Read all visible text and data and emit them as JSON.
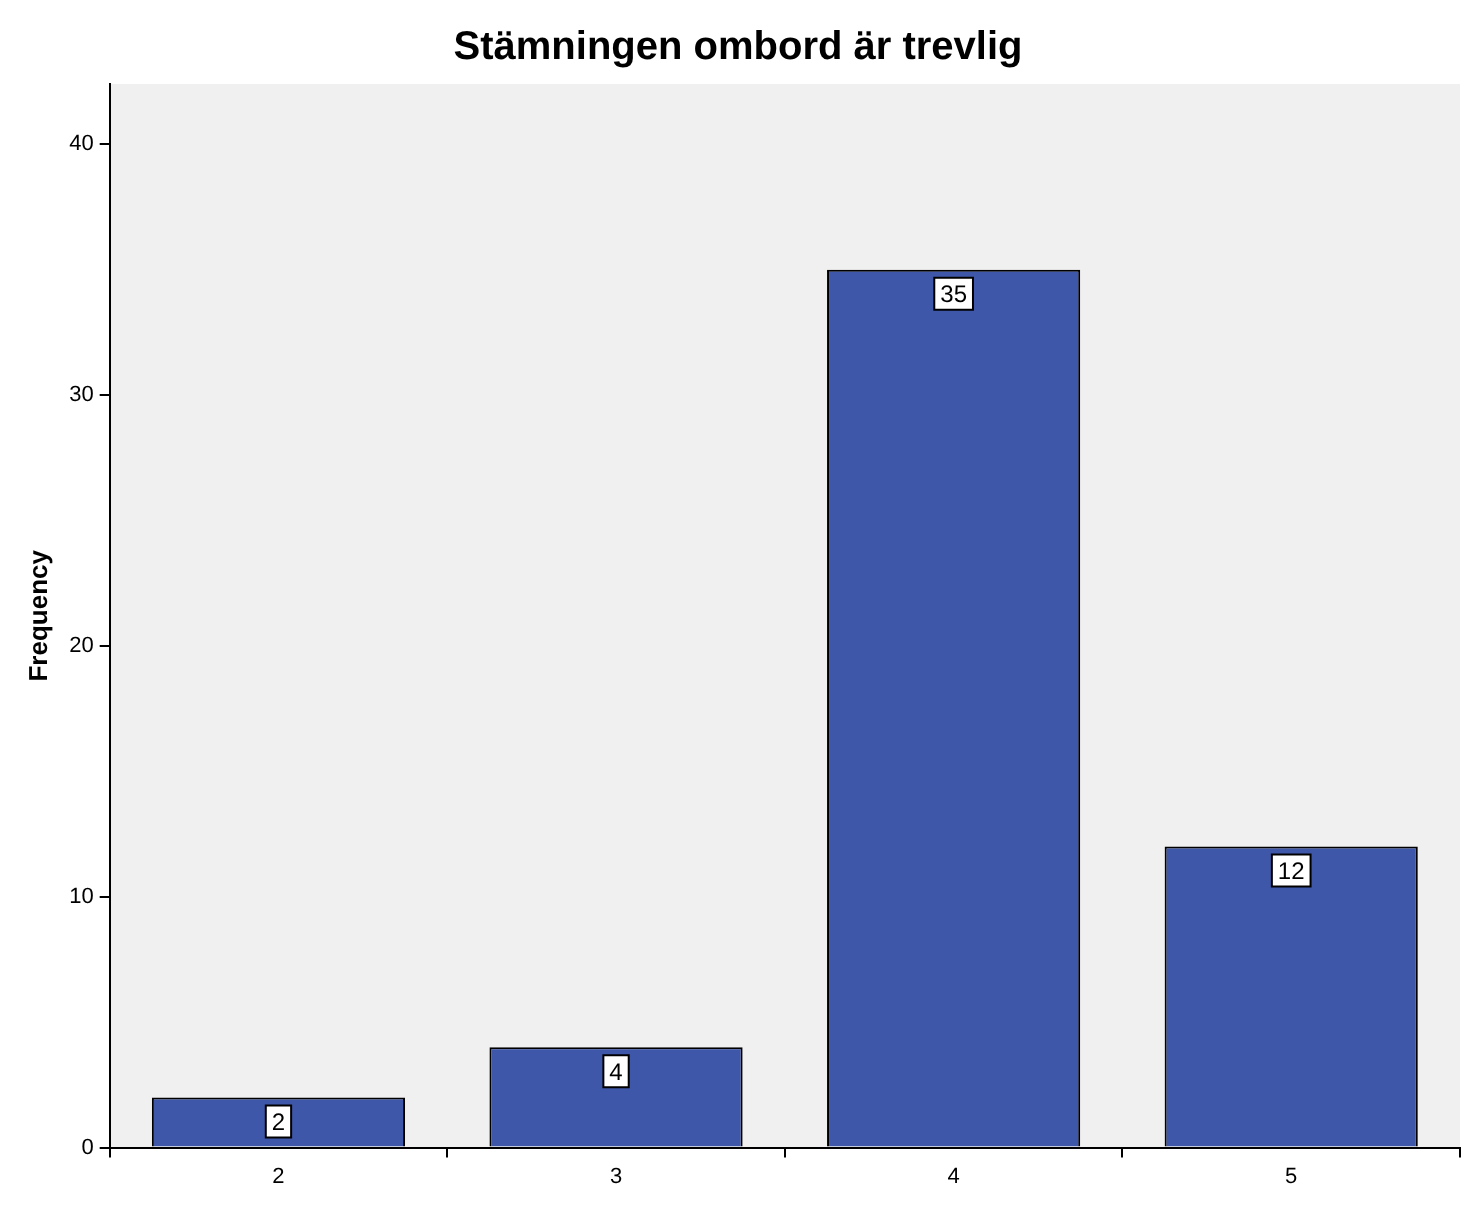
{
  "chart_data": {
    "type": "bar",
    "title": "Stämningen ombord är trevlig",
    "ylabel": "Frequency",
    "categories": [
      "2",
      "3",
      "4",
      "5"
    ],
    "values": [
      2,
      4,
      35,
      12
    ],
    "color": "#3f57a8",
    "ylim": [
      0,
      42.4
    ],
    "yticks": [
      0,
      10,
      20,
      30,
      40
    ],
    "data_labels": true,
    "grid": false,
    "legend": false
  }
}
